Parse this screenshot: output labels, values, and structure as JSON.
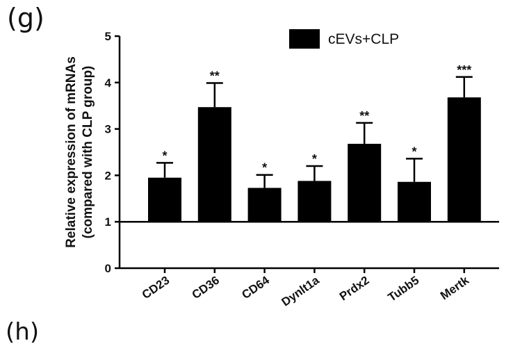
{
  "panel_label": "(g)",
  "next_panel_label": "(h)",
  "chart_data": {
    "type": "bar",
    "title": "",
    "xlabel": "",
    "ylabel_lines": [
      "Relative expression of mRNAs",
      "(compared with CLP group)"
    ],
    "ylim": [
      0,
      5
    ],
    "yticks": [
      0,
      1,
      2,
      3,
      4,
      5
    ],
    "baseline": 1,
    "grid": false,
    "legend_position": "top-right",
    "bar_color": "#000000",
    "categories": [
      "CD23",
      "CD36",
      "CD64",
      "Dynlt1a",
      "Prdx2",
      "Tubb5",
      "Mertk"
    ],
    "series": [
      {
        "name": "cEVs+CLP",
        "values": [
          1.95,
          3.47,
          1.73,
          1.88,
          2.68,
          1.86,
          3.68
        ],
        "errors": [
          0.32,
          0.52,
          0.28,
          0.32,
          0.45,
          0.5,
          0.44
        ],
        "significance": [
          "*",
          "**",
          "*",
          "*",
          "**",
          "*",
          "***"
        ]
      }
    ]
  }
}
